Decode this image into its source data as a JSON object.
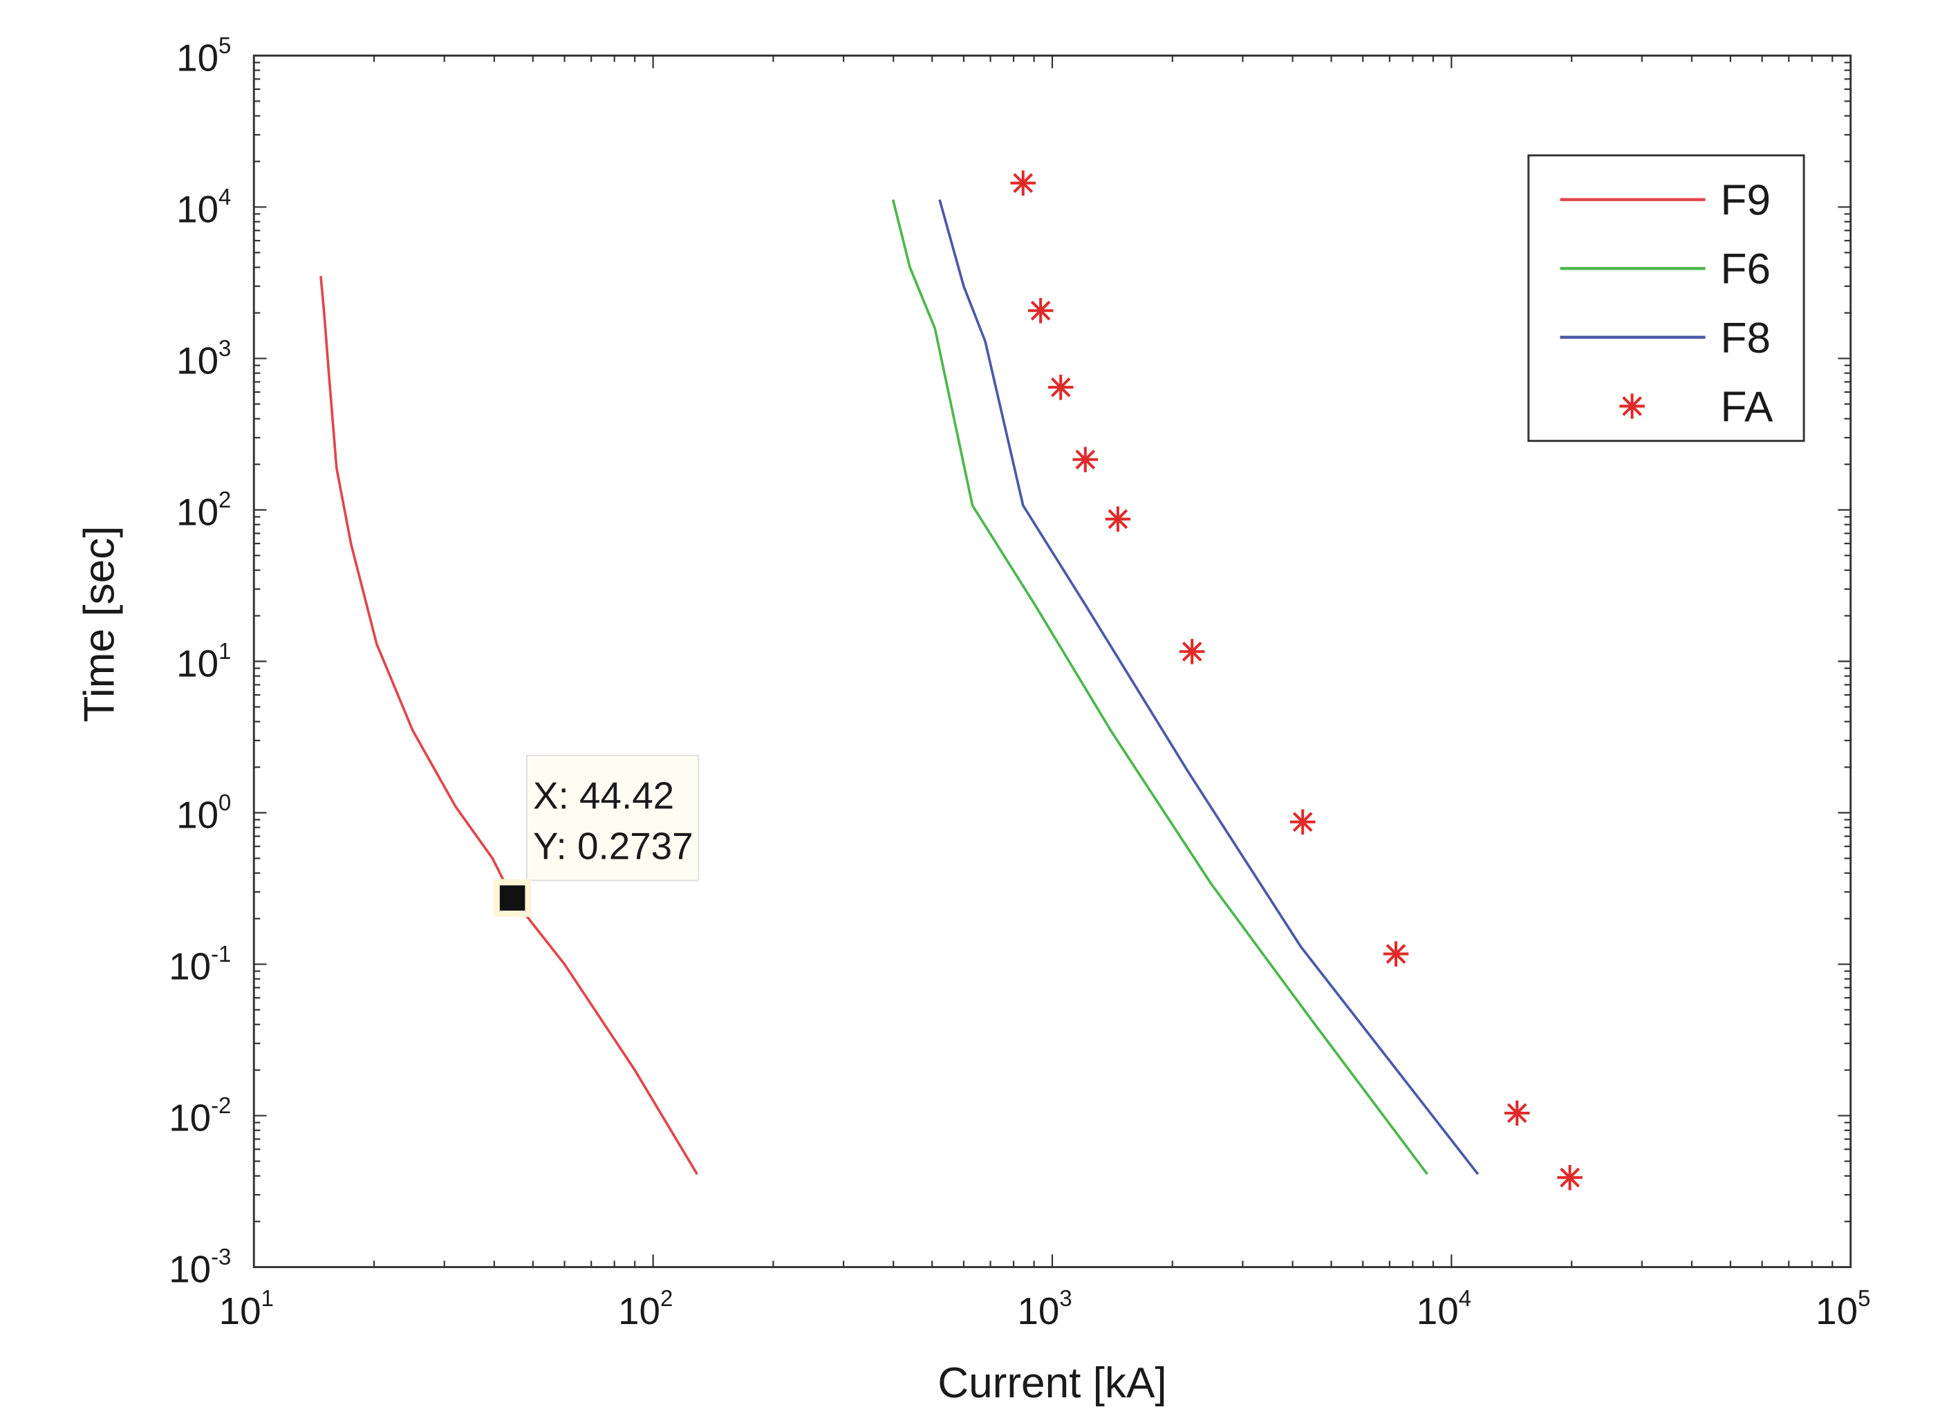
{
  "chart_data": {
    "type": "line",
    "title": "",
    "xlabel": "Current [kA]",
    "ylabel": "Time [sec]",
    "xscale": "log",
    "yscale": "log",
    "xlim": [
      10,
      100000
    ],
    "ylim": [
      0.001,
      100000
    ],
    "grid": false,
    "legend_position": "top-right",
    "x_ticks": [
      {
        "base": "10",
        "exp": "1",
        "value": 10
      },
      {
        "base": "10",
        "exp": "2",
        "value": 100
      },
      {
        "base": "10",
        "exp": "3",
        "value": 1000
      },
      {
        "base": "10",
        "exp": "4",
        "value": 10000
      },
      {
        "base": "10",
        "exp": "5",
        "value": 100000
      }
    ],
    "y_ticks": [
      {
        "base": "10",
        "exp": "-3",
        "value": 0.001
      },
      {
        "base": "10",
        "exp": "-2",
        "value": 0.01
      },
      {
        "base": "10",
        "exp": "-1",
        "value": 0.1
      },
      {
        "base": "10",
        "exp": "0",
        "value": 1
      },
      {
        "base": "10",
        "exp": "1",
        "value": 10
      },
      {
        "base": "10",
        "exp": "2",
        "value": 100
      },
      {
        "base": "10",
        "exp": "3",
        "value": 1000
      },
      {
        "base": "10",
        "exp": "4",
        "value": 10000
      },
      {
        "base": "10",
        "exp": "5",
        "value": 100000
      }
    ],
    "series": [
      {
        "name": "F9",
        "kind": "line",
        "color": "#e0474c",
        "points": [
          [
            14.7,
            3500
          ],
          [
            15.0,
            2000
          ],
          [
            15.4,
            800
          ],
          [
            16.1,
            190
          ],
          [
            17.5,
            60
          ],
          [
            20.3,
            13
          ],
          [
            25,
            3.5
          ],
          [
            32,
            1.1
          ],
          [
            39.6,
            0.5
          ],
          [
            44.42,
            0.2737
          ],
          [
            60,
            0.1
          ],
          [
            90,
            0.02
          ],
          [
            129,
            0.0041
          ]
        ]
      },
      {
        "name": "F6",
        "kind": "line",
        "color": "#4cb84c",
        "points": [
          [
            399,
            11200
          ],
          [
            440,
            4000
          ],
          [
            508,
            1580
          ],
          [
            631,
            107
          ],
          [
            910,
            23
          ],
          [
            1410,
            3.4
          ],
          [
            2500,
            0.34
          ],
          [
            4520,
            0.041
          ],
          [
            8700,
            0.0041
          ]
        ]
      },
      {
        "name": "F8",
        "kind": "line",
        "color": "#4a5aa8",
        "points": [
          [
            522,
            11200
          ],
          [
            600,
            3000
          ],
          [
            679,
            1300
          ],
          [
            845,
            107
          ],
          [
            1217,
            23
          ],
          [
            2180,
            1.9
          ],
          [
            4200,
            0.13
          ],
          [
            11650,
            0.0041
          ]
        ]
      },
      {
        "name": "FA",
        "kind": "scatter",
        "marker": "asterisk",
        "color": "#e02a2a",
        "points": [
          [
            845,
            14400
          ],
          [
            935,
            2070
          ],
          [
            1050,
            645
          ],
          [
            1210,
            215
          ],
          [
            1460,
            87
          ],
          [
            2240,
            11.6
          ],
          [
            4240,
            0.87
          ],
          [
            7260,
            0.117
          ],
          [
            14600,
            0.0104
          ],
          [
            19800,
            0.0039
          ]
        ]
      }
    ],
    "datatip": {
      "x": 44.42,
      "y": 0.2737,
      "x_label": "X: 44.42",
      "y_label": "Y: 0.2737"
    }
  }
}
